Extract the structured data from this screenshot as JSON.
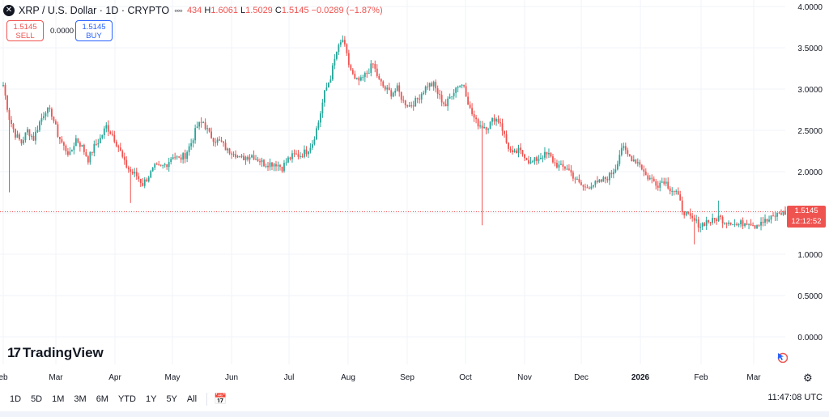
{
  "header": {
    "symbol_icon": "x-logo-icon",
    "title": "XRP / U.S. Dollar · 1D · CRYPTO",
    "dots": "◦◦◦",
    "open_partial": "434",
    "high_label": "H",
    "high": "1.6061",
    "low_label": "L",
    "low": "1.5029",
    "close_label": "C",
    "close": "1.5145",
    "change": "−0.0289 (−1.87%)"
  },
  "trade": {
    "sell_price": "1.5145",
    "sell_label": "SELL",
    "spread": "0.0000",
    "buy_price": "1.5145",
    "buy_label": "BUY"
  },
  "watermark": "TradingView",
  "price_tag": {
    "price": "1.5145",
    "countdown": "12:12:52"
  },
  "bottom": {
    "ranges": [
      "1D",
      "5D",
      "1M",
      "3M",
      "6M",
      "YTD",
      "1Y",
      "5Y",
      "All"
    ],
    "clock": "11:47:08 UTC"
  },
  "colors": {
    "up": "#26a69a",
    "down": "#ef5350",
    "grid": "#f0f3fa",
    "price_line": "#ef5350"
  },
  "chart_data": {
    "type": "candlestick",
    "y_ticks": [
      "4.0000",
      "3.5000",
      "3.0000",
      "2.5000",
      "2.0000",
      "1.5000",
      "1.0000",
      "0.5000",
      "0.0000"
    ],
    "ylim": [
      0,
      4.0
    ],
    "x_ticks": [
      "eb",
      "Mar",
      "Apr",
      "May",
      "Jun",
      "Jul",
      "Aug",
      "Sep",
      "Oct",
      "Nov",
      "Dec",
      "2026",
      "Feb",
      "Mar"
    ],
    "last_price": 1.5145,
    "close_path": [
      [
        0,
        3.05
      ],
      [
        3,
        2.65
      ],
      [
        6,
        2.45
      ],
      [
        9,
        2.35
      ],
      [
        12,
        2.5
      ],
      [
        15,
        2.4
      ],
      [
        18,
        2.6
      ],
      [
        21,
        2.75
      ],
      [
        24,
        2.7
      ],
      [
        27,
        2.45
      ],
      [
        30,
        2.3
      ],
      [
        33,
        2.2
      ],
      [
        36,
        2.4
      ],
      [
        39,
        2.3
      ],
      [
        42,
        2.15
      ],
      [
        45,
        2.3
      ],
      [
        48,
        2.4
      ],
      [
        51,
        2.55
      ],
      [
        54,
        2.45
      ],
      [
        57,
        2.3
      ],
      [
        60,
        2.1
      ],
      [
        63,
        2.0
      ],
      [
        66,
        1.95
      ],
      [
        69,
        1.85
      ],
      [
        72,
        1.95
      ],
      [
        75,
        2.05
      ],
      [
        78,
        2.05
      ],
      [
        81,
        2.1
      ],
      [
        84,
        2.2
      ],
      [
        87,
        2.15
      ],
      [
        90,
        2.2
      ],
      [
        93,
        2.35
      ],
      [
        96,
        2.55
      ],
      [
        99,
        2.6
      ],
      [
        102,
        2.45
      ],
      [
        105,
        2.38
      ],
      [
        108,
        2.35
      ],
      [
        111,
        2.25
      ],
      [
        114,
        2.25
      ],
      [
        117,
        2.15
      ],
      [
        120,
        2.18
      ],
      [
        123,
        2.2
      ],
      [
        126,
        2.15
      ],
      [
        129,
        2.1
      ],
      [
        132,
        2.1
      ],
      [
        135,
        2.1
      ],
      [
        138,
        2.05
      ],
      [
        141,
        2.15
      ],
      [
        144,
        2.2
      ],
      [
        147,
        2.2
      ],
      [
        150,
        2.25
      ],
      [
        153,
        2.35
      ],
      [
        156,
        2.6
      ],
      [
        159,
        2.95
      ],
      [
        162,
        3.15
      ],
      [
        165,
        3.45
      ],
      [
        168,
        3.6
      ],
      [
        171,
        3.3
      ],
      [
        174,
        3.1
      ],
      [
        177,
        3.1
      ],
      [
        180,
        3.2
      ],
      [
        183,
        3.3
      ],
      [
        186,
        3.1
      ],
      [
        189,
        3.0
      ],
      [
        192,
        2.95
      ],
      [
        195,
        3.0
      ],
      [
        198,
        2.85
      ],
      [
        201,
        2.8
      ],
      [
        204,
        2.85
      ],
      [
        207,
        2.95
      ],
      [
        210,
        3.05
      ],
      [
        213,
        3.05
      ],
      [
        216,
        2.9
      ],
      [
        219,
        2.8
      ],
      [
        222,
        2.95
      ],
      [
        225,
        3.05
      ],
      [
        228,
        3.05
      ],
      [
        231,
        2.75
      ],
      [
        234,
        2.6
      ],
      [
        237,
        2.55
      ],
      [
        240,
        2.55
      ],
      [
        243,
        2.65
      ],
      [
        246,
        2.6
      ],
      [
        249,
        2.35
      ],
      [
        252,
        2.2
      ],
      [
        255,
        2.25
      ],
      [
        258,
        2.2
      ],
      [
        261,
        2.1
      ],
      [
        264,
        2.15
      ],
      [
        267,
        2.2
      ],
      [
        270,
        2.2
      ],
      [
        273,
        2.1
      ],
      [
        276,
        2.05
      ],
      [
        279,
        2.05
      ],
      [
        282,
        1.95
      ],
      [
        285,
        1.85
      ],
      [
        288,
        1.8
      ],
      [
        291,
        1.85
      ],
      [
        294,
        1.85
      ],
      [
        297,
        1.9
      ],
      [
        300,
        1.95
      ],
      [
        303,
        2.05
      ],
      [
        306,
        2.3
      ],
      [
        309,
        2.2
      ],
      [
        312,
        2.15
      ],
      [
        315,
        2.1
      ],
      [
        318,
        1.95
      ],
      [
        321,
        1.9
      ],
      [
        324,
        1.85
      ],
      [
        327,
        1.9
      ],
      [
        330,
        1.8
      ],
      [
        333,
        1.75
      ],
      [
        336,
        1.55
      ],
      [
        339,
        1.45
      ],
      [
        342,
        1.4
      ],
      [
        345,
        1.35
      ],
      [
        348,
        1.4
      ],
      [
        351,
        1.4
      ],
      [
        354,
        1.45
      ],
      [
        357,
        1.4
      ],
      [
        360,
        1.4
      ],
      [
        363,
        1.35
      ],
      [
        366,
        1.38
      ],
      [
        369,
        1.4
      ],
      [
        372,
        1.35
      ],
      [
        375,
        1.4
      ],
      [
        378,
        1.4
      ],
      [
        381,
        1.45
      ],
      [
        384,
        1.5
      ],
      [
        387,
        1.5
      ]
    ],
    "spikes": [
      {
        "day": 237,
        "low": 1.35
      },
      {
        "day": 342,
        "low": 1.12
      },
      {
        "day": 354,
        "high": 1.65
      },
      {
        "day": 168,
        "high": 3.65
      },
      {
        "day": 3,
        "low": 1.75
      },
      {
        "day": 63,
        "low": 1.62
      }
    ]
  }
}
